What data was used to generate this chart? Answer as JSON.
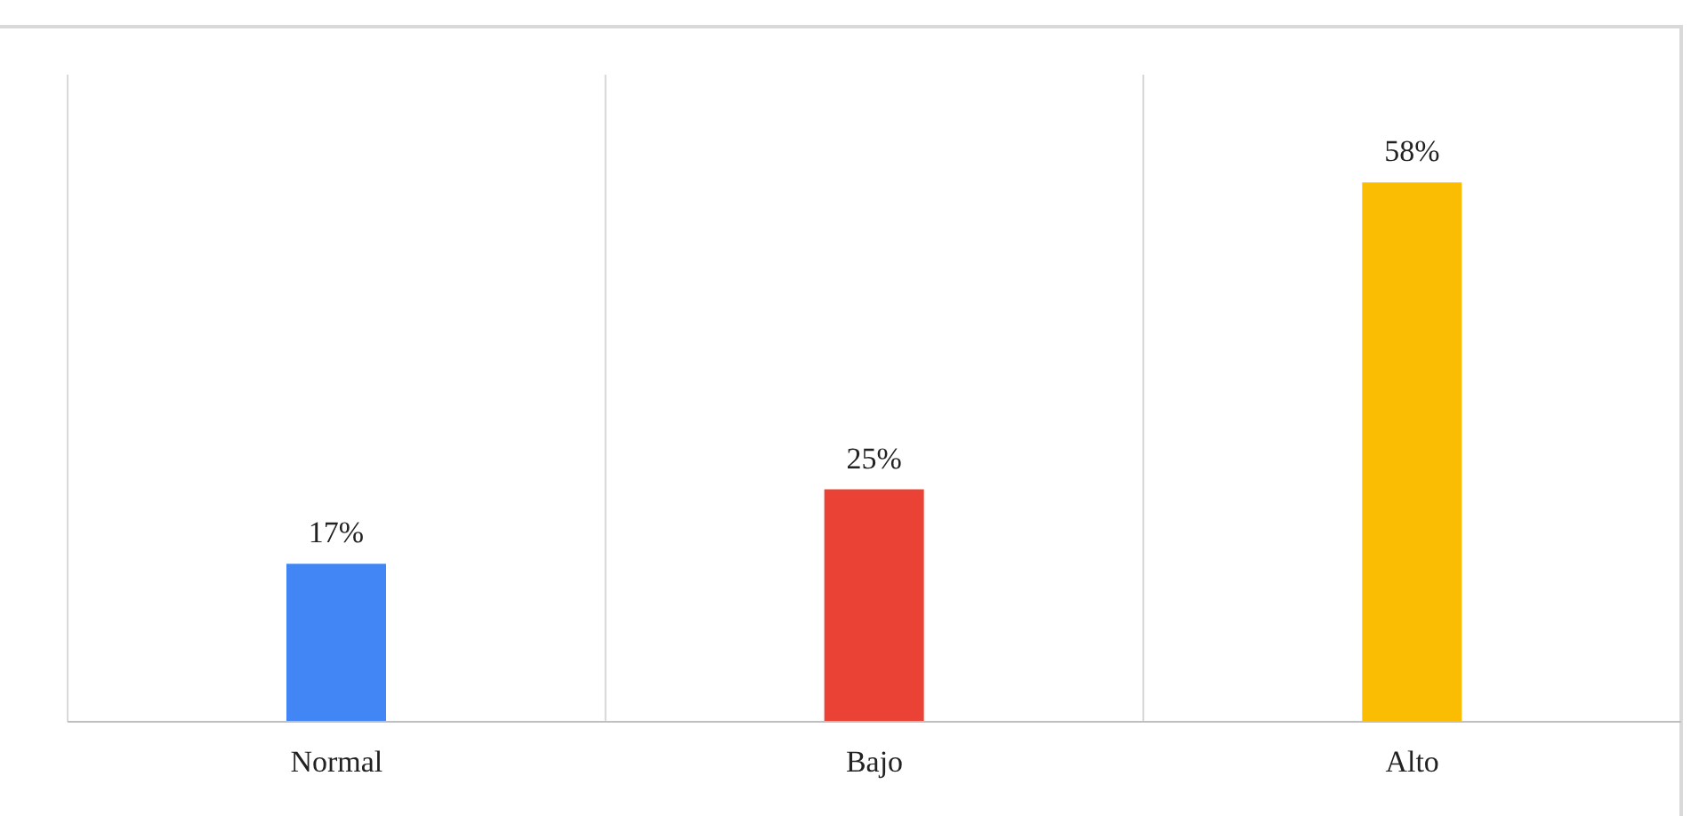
{
  "chart_data": {
    "type": "bar",
    "categories": [
      "Normal",
      "Bajo",
      "Alto"
    ],
    "values": [
      17,
      25,
      58
    ],
    "colors": [
      "#4285f4",
      "#ea4335",
      "#fbbc04"
    ],
    "value_labels": [
      "17%",
      "25%",
      "58%"
    ],
    "grid": "x"
  }
}
